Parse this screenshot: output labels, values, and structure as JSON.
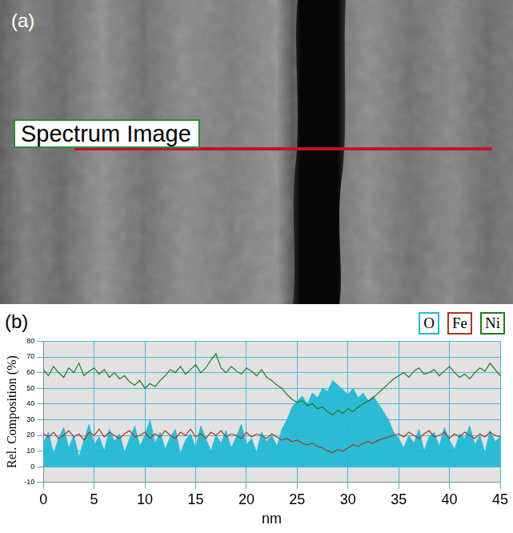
{
  "image_panel": {
    "label": "(a)",
    "annotation": "Spectrum Image"
  },
  "chart_data": {
    "label": "(b)",
    "type": "line",
    "x_label": "nm",
    "y_label": "Rel. Composition (%)",
    "x": [
      0,
      0.5,
      1,
      1.5,
      2,
      2.5,
      3,
      3.5,
      4,
      4.5,
      5,
      5.5,
      6,
      6.5,
      7,
      7.5,
      8,
      8.5,
      9,
      9.5,
      10,
      10.5,
      11,
      11.5,
      12,
      12.5,
      13,
      13.5,
      14,
      14.5,
      15,
      15.5,
      16,
      16.5,
      17,
      17.5,
      18,
      18.5,
      19,
      19.5,
      20,
      20.5,
      21,
      21.5,
      22,
      22.5,
      23,
      23.5,
      24,
      24.5,
      25,
      25.5,
      26,
      26.5,
      27,
      27.5,
      28,
      28.5,
      29,
      29.5,
      30,
      30.5,
      31,
      31.5,
      32,
      32.5,
      33,
      33.5,
      34,
      34.5,
      35,
      35.5,
      36,
      36.5,
      37,
      37.5,
      38,
      38.5,
      39,
      39.5,
      40,
      40.5,
      41,
      41.5,
      42,
      42.5,
      43,
      43.5,
      44,
      44.5,
      45
    ],
    "series": [
      {
        "name": "O",
        "color": "#22b8d4",
        "type": "area",
        "values": [
          15,
          22,
          8,
          18,
          25,
          12,
          20,
          6,
          17,
          27,
          14,
          19,
          10,
          24,
          16,
          21,
          9,
          18,
          26,
          13,
          20,
          30,
          15,
          22,
          11,
          19,
          24,
          8,
          17,
          21,
          12,
          26,
          18,
          10,
          20,
          15,
          23,
          12,
          19,
          27,
          14,
          18,
          9,
          22,
          16,
          20,
          13,
          24,
          30,
          38,
          42,
          45,
          40,
          47,
          44,
          50,
          48,
          55,
          52,
          49,
          46,
          50,
          44,
          47,
          42,
          45,
          40,
          35,
          30,
          22,
          18,
          12,
          20,
          15,
          24,
          10,
          19,
          22,
          13,
          25,
          17,
          11,
          21,
          18,
          26,
          14,
          20,
          9,
          23,
          16,
          19
        ]
      },
      {
        "name": "Fe",
        "color": "#a33a20",
        "type": "line",
        "values": [
          21,
          19,
          22,
          18,
          20,
          23,
          19,
          21,
          17,
          22,
          20,
          24,
          19,
          22,
          20,
          18,
          21,
          23,
          19,
          20,
          22,
          18,
          21,
          19,
          23,
          20,
          18,
          22,
          20,
          24,
          19,
          21,
          18,
          22,
          20,
          23,
          19,
          21,
          20,
          18,
          22,
          19,
          21,
          20,
          18,
          21,
          19,
          17,
          18,
          16,
          17,
          15,
          14,
          15,
          13,
          12,
          10,
          9,
          11,
          10,
          12,
          14,
          13,
          15,
          16,
          15,
          17,
          18,
          19,
          20,
          21,
          19,
          22,
          20,
          18,
          21,
          23,
          19,
          20,
          22,
          18,
          21,
          19,
          22,
          20,
          18,
          21,
          19,
          22,
          20,
          19
        ]
      },
      {
        "name": "Ni",
        "color": "#1e7a1e",
        "type": "line",
        "values": [
          62,
          58,
          64,
          60,
          57,
          63,
          60,
          66,
          58,
          61,
          63,
          59,
          62,
          57,
          60,
          56,
          58,
          54,
          52,
          55,
          50,
          53,
          51,
          55,
          58,
          62,
          60,
          64,
          59,
          62,
          65,
          60,
          63,
          68,
          72,
          63,
          60,
          64,
          61,
          59,
          63,
          61,
          58,
          62,
          57,
          55,
          52,
          50,
          46,
          43,
          41,
          42,
          39,
          40,
          37,
          38,
          35,
          33,
          36,
          34,
          37,
          35,
          38,
          40,
          42,
          44,
          47,
          50,
          53,
          56,
          58,
          60,
          57,
          61,
          63,
          59,
          60,
          62,
          58,
          61,
          64,
          60,
          57,
          59,
          56,
          60,
          63,
          61,
          66,
          62,
          58
        ]
      }
    ],
    "xlim": [
      0,
      45
    ],
    "xticks": [
      0,
      5,
      10,
      15,
      20,
      25,
      30,
      35,
      40,
      45
    ],
    "ylim": [
      -10,
      80
    ],
    "yticks": [
      -10,
      0,
      10,
      20,
      30,
      40,
      50,
      60,
      70,
      80
    ],
    "grid": true,
    "legend": "top-right"
  }
}
